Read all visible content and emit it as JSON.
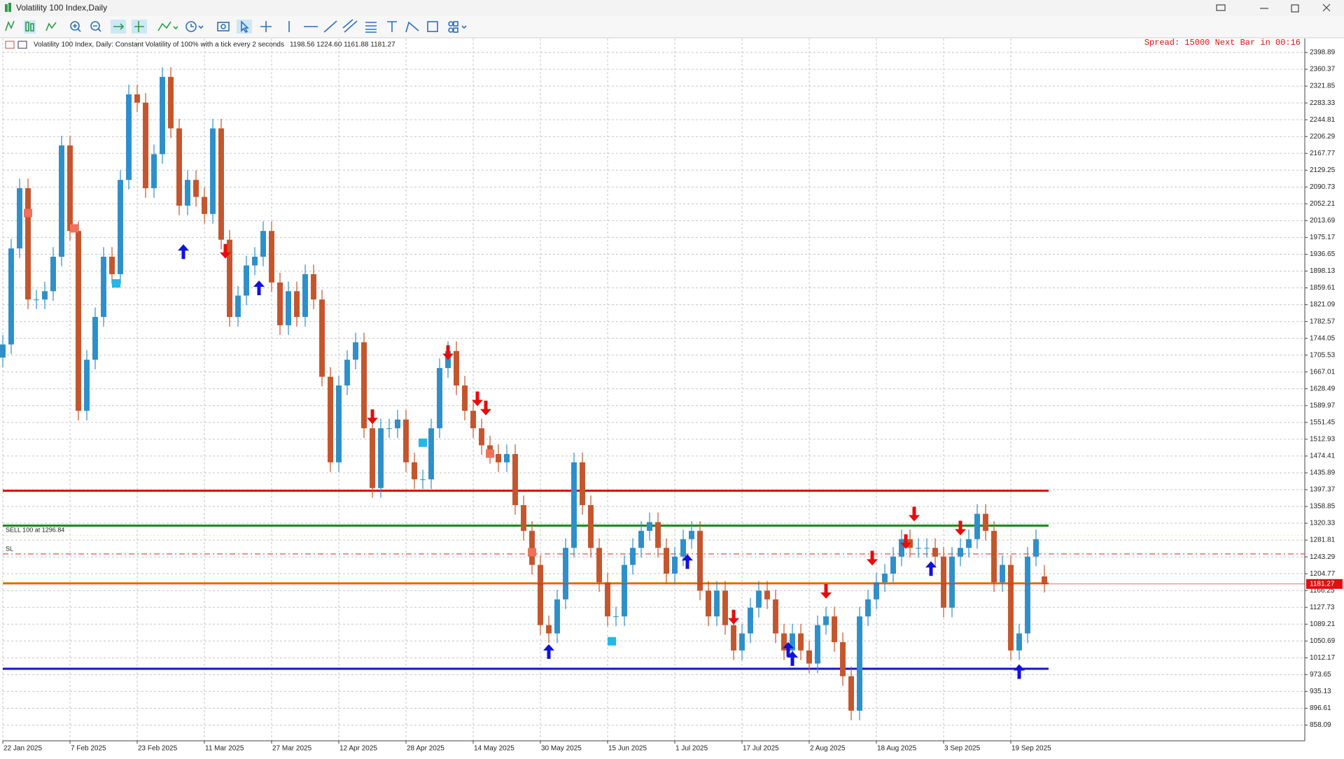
{
  "window": {
    "title": "Volatility 100 Index,Daily"
  },
  "chart_data": {
    "type": "candlestick",
    "info": "Volatility 100 Index, Daily:  Constant Volatility of 100% with a tick every 2 seconds",
    "ohlc": "1198.56 1224.60 1161.88 1181.27",
    "spread": "Spread: 15000 Next Bar in 00:16",
    "grid": true,
    "bull_color": "#2e8fc9",
    "bear_color": "#c4552c",
    "xlim": [
      0,
      310
    ],
    "xticks": [
      {
        "value": 0,
        "label": "22 Jan 2025"
      },
      {
        "value": 16,
        "label": "7 Feb 2025"
      },
      {
        "value": 32,
        "label": "23 Feb 2025"
      },
      {
        "value": 48,
        "label": "11 Mar 2025"
      },
      {
        "value": 64,
        "label": "27 Mar 2025"
      },
      {
        "value": 80,
        "label": "12 Apr 2025"
      },
      {
        "value": 96,
        "label": "28 Apr 2025"
      },
      {
        "value": 112,
        "label": "14 May 2025"
      },
      {
        "value": 128,
        "label": "30 May 2025"
      },
      {
        "value": 144,
        "label": "15 Jun 2025"
      },
      {
        "value": 160,
        "label": "1 Jul 2025"
      },
      {
        "value": 176,
        "label": "17 Jul 2025"
      },
      {
        "value": 192,
        "label": "2 Aug 2025"
      },
      {
        "value": 208,
        "label": "18 Aug 2025"
      },
      {
        "value": 224,
        "label": "3 Sep 2025"
      },
      {
        "value": 240,
        "label": "19 Sep 2025"
      }
    ],
    "ylim": [
      822,
      2431
    ],
    "yticks": [
      2398.89,
      2360.37,
      2321.85,
      2283.33,
      2244.81,
      2206.29,
      2167.77,
      2129.25,
      2090.73,
      2052.21,
      2013.69,
      1975.17,
      1936.65,
      1898.13,
      1859.61,
      1821.09,
      1782.57,
      1744.05,
      1705.53,
      1667.01,
      1628.49,
      1589.97,
      1551.45,
      1512.93,
      1474.41,
      1435.89,
      1397.37,
      1358.85,
      1320.33,
      1281.81,
      1243.29,
      1204.77,
      1166.25,
      1127.73,
      1089.21,
      1050.69,
      1012.17,
      973.65,
      935.13,
      896.61,
      858.09
    ],
    "candles": {
      "x": [
        0,
        2,
        4,
        6,
        8,
        10,
        12,
        14,
        16,
        18,
        20,
        22,
        24,
        26,
        28,
        30,
        32,
        34,
        36,
        38,
        40,
        42,
        44,
        46,
        48,
        50,
        52,
        54,
        56,
        58,
        60,
        62,
        64,
        66,
        68,
        70,
        72,
        74,
        76,
        78,
        80,
        82,
        84,
        86,
        88,
        90,
        92,
        94,
        96,
        98,
        100,
        102,
        104,
        106,
        108,
        110,
        112,
        114,
        116,
        118,
        120,
        122,
        124,
        126,
        128,
        130,
        132,
        134,
        136,
        138,
        140,
        142,
        144,
        146,
        148,
        150,
        152,
        154,
        156,
        158,
        160,
        162,
        164,
        166,
        168,
        170,
        172,
        174,
        176,
        178,
        180,
        182,
        184,
        186,
        188,
        190,
        192,
        194,
        196,
        198,
        200,
        202,
        204,
        206,
        208,
        210,
        212,
        214,
        216,
        218,
        220,
        222,
        224,
        226,
        228,
        230,
        232,
        234,
        236,
        238,
        240,
        242,
        244,
        246,
        248
      ],
      "open": [
        1700,
        1730,
        1950,
        2088,
        1833,
        1833,
        1852,
        1931,
        2186,
        1990,
        1578,
        1695,
        1793,
        1931,
        1891,
        2107,
        2303,
        2284,
        2088,
        2166,
        2343,
        2225,
        2048,
        2107,
        2068,
        2029,
        2225,
        1970,
        1793,
        1842,
        1911,
        1931,
        1990,
        1872,
        1774,
        1852,
        1793,
        1891,
        1833,
        1656,
        1460,
        1636,
        1695,
        1735,
        1538,
        1401,
        1538,
        1538,
        1558,
        1460,
        1421,
        1421,
        1538,
        1676,
        1715,
        1636,
        1578,
        1538,
        1499,
        1479,
        1460,
        1479,
        1362,
        1303,
        1225,
        1087,
        1068,
        1146,
        1264,
        1460,
        1362,
        1264,
        1185,
        1107,
        1107,
        1225,
        1264,
        1303,
        1323,
        1264,
        1205,
        1244,
        1284,
        1303,
        1166,
        1107,
        1166,
        1087,
        1029,
        1068,
        1127,
        1166,
        1146,
        1068,
        1029,
        1068,
        1029,
        999,
        1087,
        1107,
        1048,
        970,
        891,
        1107,
        1146,
        1185,
        1205,
        1244,
        1284,
        1264,
        1264,
        1264,
        1244,
        1127,
        1244,
        1264,
        1284,
        1342,
        1303,
        1185,
        1225,
        1029,
        1068,
        1244,
        1198.56
      ],
      "high": [
        1752,
        1972,
        2110,
        2110,
        1855,
        1874,
        1953,
        2208,
        2208,
        2012,
        1717,
        1815,
        1953,
        1953,
        2129,
        2325,
        2325,
        2306,
        2188,
        2365,
        2365,
        2247,
        2129,
        2129,
        2090,
        2247,
        2247,
        1992,
        1864,
        1933,
        1953,
        2012,
        2012,
        1894,
        1874,
        1874,
        1913,
        1913,
        1855,
        1678,
        1658,
        1717,
        1757,
        1757,
        1560,
        1560,
        1560,
        1580,
        1580,
        1482,
        1443,
        1560,
        1698,
        1737,
        1737,
        1658,
        1600,
        1560,
        1521,
        1501,
        1501,
        1501,
        1384,
        1325,
        1247,
        1109,
        1168,
        1286,
        1482,
        1482,
        1384,
        1286,
        1207,
        1129,
        1247,
        1286,
        1325,
        1345,
        1345,
        1286,
        1266,
        1306,
        1325,
        1325,
        1188,
        1188,
        1188,
        1109,
        1090,
        1149,
        1188,
        1188,
        1168,
        1090,
        1090,
        1090,
        1051,
        1109,
        1129,
        1129,
        1070,
        992,
        1129,
        1168,
        1207,
        1227,
        1266,
        1306,
        1306,
        1286,
        1286,
        1286,
        1266,
        1266,
        1286,
        1306,
        1364,
        1364,
        1325,
        1247,
        1247,
        1090,
        1266,
        1306,
        1224.6
      ],
      "low": [
        1678,
        1708,
        1928,
        1811,
        1811,
        1811,
        1830,
        1909,
        1968,
        1556,
        1556,
        1673,
        1771,
        1869,
        1869,
        2085,
        2262,
        2066,
        2066,
        2144,
        2203,
        2026,
        2026,
        2046,
        2007,
        2007,
        1948,
        1771,
        1771,
        1820,
        1889,
        1909,
        1850,
        1752,
        1752,
        1771,
        1771,
        1811,
        1634,
        1438,
        1438,
        1614,
        1673,
        1516,
        1379,
        1379,
        1516,
        1516,
        1438,
        1399,
        1399,
        1399,
        1516,
        1654,
        1614,
        1556,
        1516,
        1477,
        1457,
        1438,
        1438,
        1340,
        1281,
        1203,
        1065,
        1046,
        1046,
        1124,
        1242,
        1340,
        1242,
        1163,
        1085,
        1085,
        1085,
        1203,
        1242,
        1281,
        1242,
        1183,
        1183,
        1222,
        1262,
        1144,
        1085,
        1085,
        1065,
        1007,
        1007,
        1046,
        1105,
        1124,
        1046,
        1007,
        1007,
        1007,
        977,
        977,
        1065,
        1026,
        948,
        869,
        869,
        1085,
        1124,
        1163,
        1183,
        1222,
        1242,
        1242,
        1242,
        1222,
        1105,
        1105,
        1222,
        1242,
        1262,
        1281,
        1163,
        1163,
        1007,
        1007,
        1046,
        1222,
        1161.88
      ],
      "close": [
        1730,
        1950,
        2088,
        1833,
        1833,
        1852,
        1931,
        2186,
        1990,
        1578,
        1695,
        1793,
        1931,
        1891,
        2107,
        2303,
        2284,
        2088,
        2166,
        2343,
        2225,
        2048,
        2107,
        2068,
        2029,
        2225,
        1970,
        1793,
        1842,
        1911,
        1931,
        1990,
        1872,
        1774,
        1852,
        1793,
        1891,
        1833,
        1656,
        1460,
        1636,
        1695,
        1735,
        1538,
        1401,
        1538,
        1538,
        1558,
        1460,
        1421,
        1421,
        1538,
        1676,
        1715,
        1636,
        1578,
        1538,
        1499,
        1479,
        1460,
        1479,
        1362,
        1303,
        1225,
        1087,
        1068,
        1146,
        1264,
        1460,
        1362,
        1264,
        1185,
        1107,
        1107,
        1225,
        1264,
        1303,
        1323,
        1264,
        1205,
        1244,
        1284,
        1303,
        1166,
        1107,
        1166,
        1087,
        1029,
        1068,
        1127,
        1166,
        1146,
        1068,
        1029,
        1068,
        1029,
        999,
        1087,
        1107,
        1048,
        970,
        891,
        1107,
        1146,
        1185,
        1205,
        1244,
        1284,
        1264,
        1264,
        1264,
        1244,
        1127,
        1244,
        1264,
        1284,
        1342,
        1303,
        1185,
        1225,
        1029,
        1068,
        1244,
        1284,
        1181.27
      ]
    },
    "levels": [
      {
        "value": 1395,
        "color": "#e01010",
        "width": 3,
        "dash": "solid",
        "end": 249
      },
      {
        "value": 1315,
        "color": "#138a13",
        "width": 3,
        "dash": "solid",
        "end": 249,
        "label": "SELL 100 at 1296.84"
      },
      {
        "value": 1293,
        "color": "#e8e2a8",
        "width": 1,
        "dash": "dot",
        "end": 310
      },
      {
        "value": 1250,
        "color": "#e02020",
        "width": 1,
        "dash": "dashdot",
        "end": 310,
        "label": "SL"
      },
      {
        "value": 1183,
        "color": "#f08010",
        "width": 3,
        "dash": "solid",
        "end": 249
      },
      {
        "value": 987,
        "color": "#1414d0",
        "width": 3,
        "dash": "solid",
        "end": 249
      }
    ],
    "current_price_color": "#e01010",
    "up_arrows": {
      "color": "#1010e0",
      "x": [
        43,
        61,
        130,
        163,
        187,
        188,
        221,
        242
      ],
      "y": [
        1945,
        1862,
        1029,
        1235,
        1034,
        1013,
        1219,
        983
      ]
    },
    "down_arrows": {
      "color": "#e80c0c",
      "x": [
        53,
        88,
        106,
        113,
        115,
        174,
        196,
        207,
        215,
        217,
        228
      ],
      "y": [
        1941,
        1562,
        1709,
        1603,
        1582,
        1103,
        1162,
        1238,
        1276,
        1339,
        1307
      ]
    },
    "orange_squares": {
      "color": "#f0705a",
      "x": [
        6,
        17,
        116,
        126
      ],
      "y": [
        2031,
        1996,
        1480,
        1254
      ]
    },
    "cyan_squares": {
      "color": "#22b8e8",
      "x": [
        27,
        100,
        145
      ],
      "y": [
        1870,
        1505,
        1050
      ]
    }
  }
}
